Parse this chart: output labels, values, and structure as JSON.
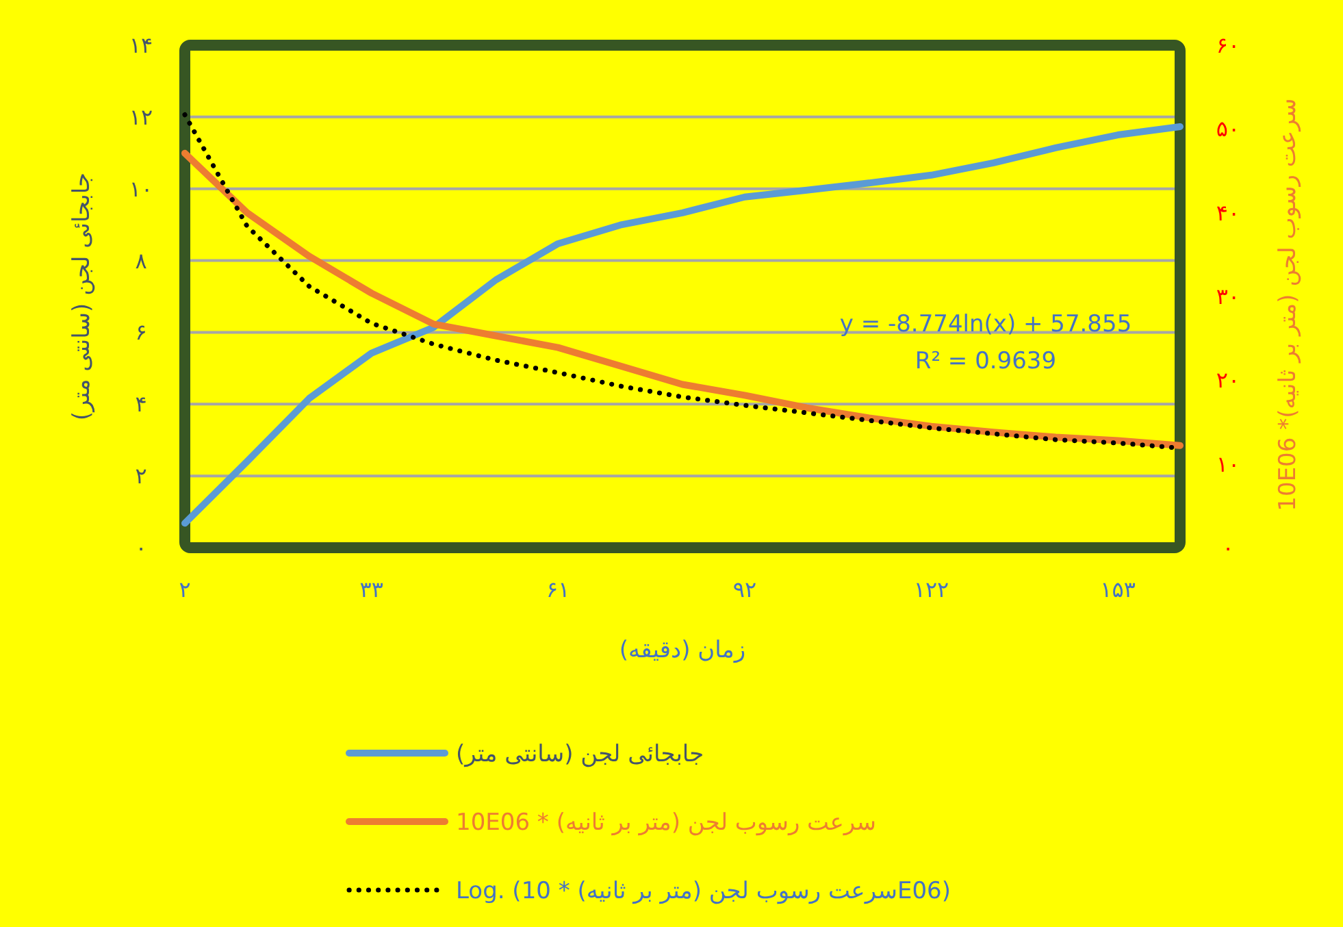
{
  "chart_data": {
    "type": "line",
    "xlabel": "زمان (دقیقه)",
    "ylabel": "جابجائی لجن (سانتی متر)",
    "y2label": "سرعت رسوب لجن (متر بر ثانیه)* 10E06",
    "categories": [
      "۲",
      null,
      null,
      "۳۳",
      null,
      null,
      "۶۱",
      null,
      null,
      "۹۲",
      null,
      null,
      "۱۲۲",
      null,
      null,
      "۱۵۳",
      null
    ],
    "series": [
      {
        "name": "جابجائی لجن (سانتی متر)",
        "color": "#5b9bd5",
        "values": [
          0.68,
          2.4,
          4.16,
          5.42,
          6.14,
          7.46,
          8.47,
          8.99,
          9.33,
          9.77,
          9.96,
          10.16,
          10.38,
          10.72,
          11.14,
          11.5,
          11.73
        ]
      },
      {
        "name": "سرعت رسوب لجن  (متر بر ثانیه) * 10E06",
        "color": "#ed7d31",
        "axis": "y2",
        "values": [
          47.1,
          40.0,
          34.8,
          30.4,
          26.7,
          25.3,
          23.9,
          21.7,
          19.5,
          18.2,
          16.7,
          15.5,
          14.5,
          13.8,
          13.2,
          12.8,
          12.2
        ]
      },
      {
        "name": "Log. (سرعت رسوب لجن  (متر بر ثانیه) * 10E06)",
        "color": "#000000",
        "axis": "y2",
        "line_style": "dotted",
        "values": [
          51.7,
          38.4,
          31.2,
          26.8,
          24.3,
          22.4,
          20.9,
          19.3,
          18.0,
          17.0,
          16.1,
          15.2,
          14.3,
          13.6,
          12.9,
          12.5,
          11.9
        ]
      }
    ],
    "ylim": [
      0,
      14
    ],
    "yticks": [
      {
        "value": 0,
        "label": "۰"
      },
      {
        "value": 2,
        "label": "۲"
      },
      {
        "value": 4,
        "label": "۴"
      },
      {
        "value": 6,
        "label": "۶"
      },
      {
        "value": 8,
        "label": "۸"
      },
      {
        "value": 10,
        "label": "۱۰"
      },
      {
        "value": 12,
        "label": "۱۲"
      },
      {
        "value": 14,
        "label": "۱۴"
      }
    ],
    "y2lim": [
      0,
      60
    ],
    "y2ticks": [
      {
        "value": 0,
        "label": "۰"
      },
      {
        "value": 10,
        "label": "۱۰"
      },
      {
        "value": 20,
        "label": "۲۰"
      },
      {
        "value": 30,
        "label": "۳۰"
      },
      {
        "value": 40,
        "label": "۴۰"
      },
      {
        "value": 50,
        "label": "۵۰"
      },
      {
        "value": 60,
        "label": "۶۰"
      }
    ],
    "annotations": [
      "y = -8.774ln(x) + 57.855",
      "R² = 0.9639"
    ],
    "grid": "y",
    "legend": "bottom",
    "marker": "none",
    "line_style": "solid"
  }
}
